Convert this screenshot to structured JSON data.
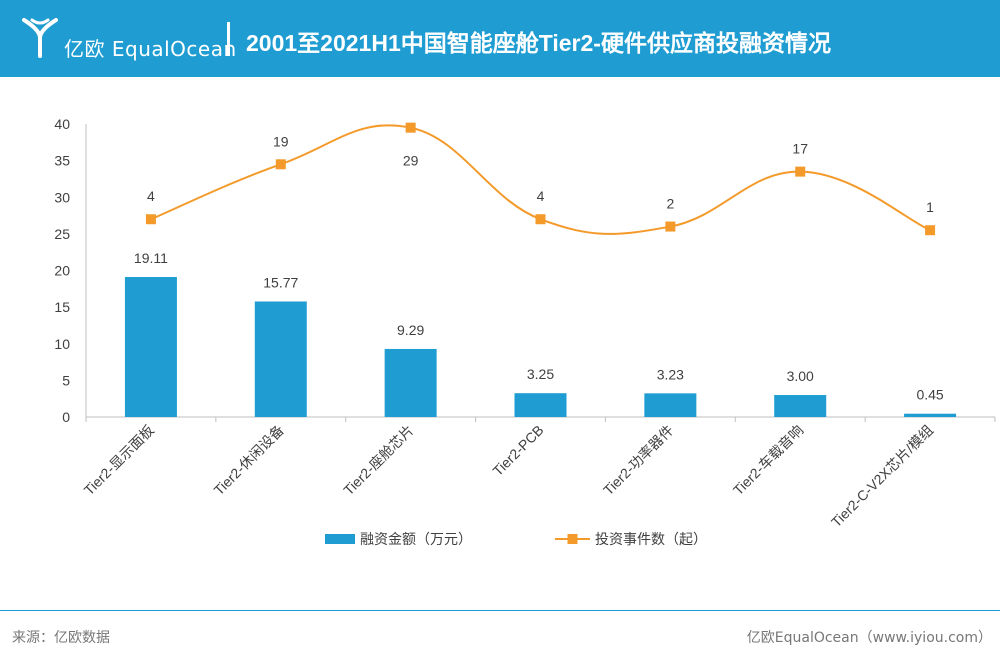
{
  "header": {
    "logo_text": "亿欧 EqualOcean",
    "title": "2001至2021H1中国智能座舱Tier2-硬件供应商投融资情况"
  },
  "footer": {
    "source": "来源：亿欧数据",
    "credit": "亿欧EqualOcean（www.iyiou.com）"
  },
  "colors": {
    "header_bg": "#1f9dd2",
    "bar": "#1f9dd2",
    "line": "#f39a2a"
  },
  "chart_data": {
    "type": "bar",
    "categories": [
      "Tier2-显示面板",
      "Tier2-休闲设备",
      "Tier2-座舱芯片",
      "Tier2-PCB",
      "Tier2-功率器件",
      "Tier2-车载音响",
      "Tier2-C-V2X芯片/模组"
    ],
    "ylim": [
      0,
      40
    ],
    "yticks": [
      0,
      5,
      10,
      15,
      20,
      25,
      30,
      35,
      40
    ],
    "grid": false,
    "legend_position": "bottom",
    "series": [
      {
        "name": "融资金额（万元）",
        "type": "bar",
        "values": [
          19.11,
          15.77,
          9.29,
          3.25,
          3.23,
          3.0,
          0.45
        ],
        "labels": [
          "19.11",
          "15.77",
          "9.29",
          "3.25",
          "3.23",
          "3.00",
          "0.45"
        ]
      },
      {
        "name": "投资事件数（起）",
        "type": "line",
        "smooth": true,
        "labels": [
          "4",
          "19",
          "29",
          "4",
          "2",
          "17",
          "1"
        ],
        "plot_y": [
          27,
          34.5,
          39.5,
          27,
          26,
          33.5,
          25.5
        ]
      }
    ]
  }
}
